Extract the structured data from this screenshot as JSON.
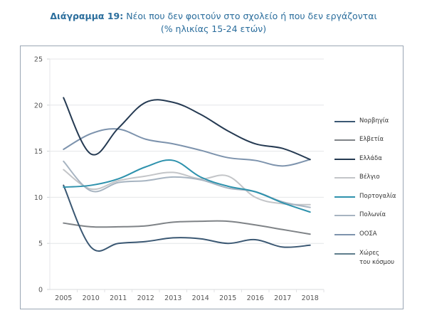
{
  "title": {
    "prefix": "Διάγραμμα 19:",
    "text": "Νέοι που δεν φοιτούν στο σχολείο ή που δεν εργάζονται",
    "subtitle": "(% ηλικίας 15-24 ετών)"
  },
  "chart_data": {
    "type": "line",
    "title": "Διάγραμμα 19: Νέοι που δεν φοιτούν στο σχολείο ή που δεν εργάζονται",
    "subtitle": "(% ηλικίας 15-24 ετών)",
    "xlabel": "",
    "ylabel": "",
    "categories": [
      "2005",
      "2010",
      "2011",
      "2012",
      "2013",
      "2014",
      "2015",
      "2016",
      "2017",
      "2018"
    ],
    "ylim": [
      0,
      25
    ],
    "yticks": [
      0,
      5,
      10,
      15,
      20,
      25
    ],
    "grid": true,
    "legend_position": "right",
    "series": [
      {
        "name": "Νορβηγία",
        "color": "#3b5873",
        "values": [
          11.3,
          4.6,
          5.0,
          5.2,
          5.6,
          5.5,
          5.0,
          5.4,
          4.6,
          4.8
        ]
      },
      {
        "name": "Ελβετία",
        "color": "#7f8387",
        "values": [
          7.2,
          6.8,
          6.8,
          6.9,
          7.3,
          7.4,
          7.4,
          7.0,
          6.5,
          6.0
        ]
      },
      {
        "name": "Ελλάδα",
        "color": "#253a52",
        "values": [
          20.8,
          14.7,
          17.5,
          20.3,
          20.3,
          19.0,
          17.2,
          15.8,
          15.3,
          14.1
        ]
      },
      {
        "name": "Βέλγιο",
        "color": "#c3c5c8",
        "values": [
          13.0,
          10.9,
          11.8,
          12.3,
          12.7,
          12.0,
          12.3,
          10.0,
          9.3,
          9.2
        ]
      },
      {
        "name": "Πορτογαλία",
        "color": "#2e92ad",
        "values": [
          11.1,
          11.3,
          12.0,
          13.3,
          14.0,
          12.2,
          11.2,
          10.6,
          9.4,
          8.4
        ]
      },
      {
        "name": "Πολωνία",
        "color": "#a7b4c1",
        "values": [
          13.9,
          10.7,
          11.6,
          11.8,
          12.2,
          11.9,
          11.0,
          10.6,
          9.5,
          8.9
        ]
      },
      {
        "name": "ΟΟΣΑ",
        "color": "#7d93ad",
        "values": [
          15.2,
          16.9,
          17.4,
          16.3,
          15.8,
          15.1,
          14.3,
          14.0,
          13.4,
          14.1
        ]
      },
      {
        "name": "Χώρες\nτου κόσμου",
        "color": "#5f7d8c",
        "values": []
      }
    ]
  }
}
